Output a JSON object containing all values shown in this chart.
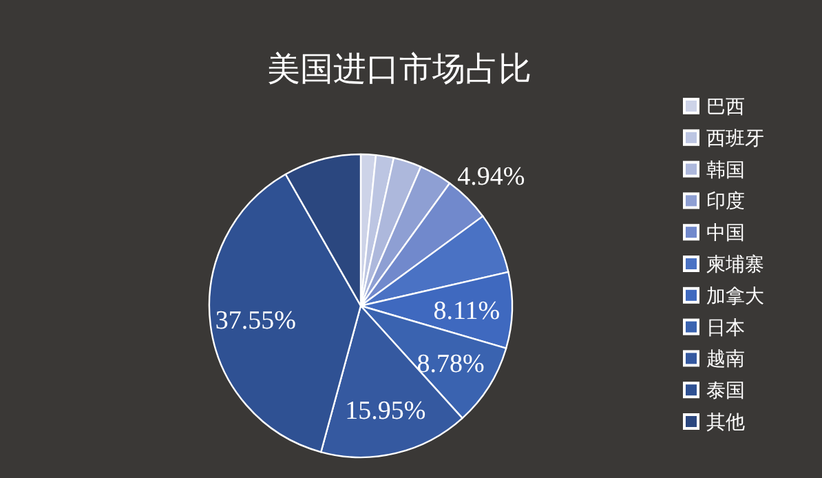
{
  "chart_data": {
    "type": "pie",
    "title": "美国进口市场占比",
    "categories": [
      "巴西",
      "西班牙",
      "韩国",
      "印度",
      "中国",
      "柬埔寨",
      "加拿大",
      "日本",
      "越南",
      "泰国",
      "其他"
    ],
    "values": [
      1.6,
      1.9,
      3.0,
      3.5,
      4.94,
      6.5,
      8.11,
      8.78,
      15.95,
      37.55,
      8.27
    ],
    "value_labels": [
      null,
      null,
      null,
      null,
      "4.94%",
      null,
      "8.11%",
      "8.78%",
      "15.95%",
      "37.55%",
      null
    ],
    "colors": [
      "#cdd3e8",
      "#bcc5e2",
      "#adb8dc",
      "#8e9fd3",
      "#7189cc",
      "#4a72c4",
      "#3f69bf",
      "#3a63b0",
      "#3559a0",
      "#2f5193",
      "#2b477f"
    ],
    "legend": "right"
  }
}
